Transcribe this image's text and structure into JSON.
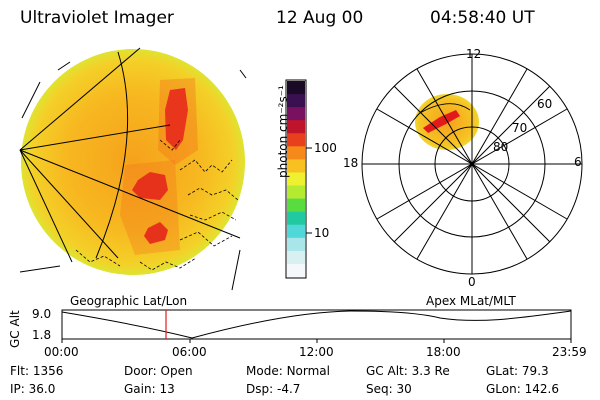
{
  "header": {
    "title": "Ultraviolet Imager",
    "date": "12 Aug 00",
    "time": "04:58:40 UT"
  },
  "colorbar": {
    "unit_label": "photon cm⁻²s⁻¹",
    "ticks": [
      "100",
      "10"
    ],
    "colors": [
      "#1a0a26",
      "#3a1050",
      "#7a1060",
      "#c0142c",
      "#e8401c",
      "#f58a1a",
      "#f8c020",
      "#eef030",
      "#b4ea30",
      "#58dc40",
      "#20c9a0",
      "#50d8d8",
      "#a8e6ea",
      "#d8f0f2",
      "#f4f8fa"
    ]
  },
  "polar_plot": {
    "labels": {
      "top": "12",
      "right": "6",
      "bottom": "0",
      "left": "18"
    },
    "lat_labels": [
      "60",
      "70",
      "80"
    ]
  },
  "frame_labels": {
    "geo": "Geographic Lat/Lon",
    "apex": "Apex MLat/MLT"
  },
  "altitude_strip": {
    "axis_label": "GC Alt",
    "y_ticks": [
      "9.0",
      "1.8"
    ],
    "x_ticks": [
      "00:00",
      "06:00",
      "12:00",
      "18:00",
      "23:59"
    ]
  },
  "info": {
    "row1": [
      {
        "label": "Flt:",
        "value": "1356"
      },
      {
        "label": "Door:",
        "value": "Open"
      },
      {
        "label": "Mode:",
        "value": "Normal"
      },
      {
        "label": "GC Alt:",
        "value": "3.3 Re"
      },
      {
        "label": "GLat:",
        "value": "79.3"
      }
    ],
    "row2": [
      {
        "label": "IP:",
        "value": "36.0"
      },
      {
        "label": "Gain:",
        "value": "13"
      },
      {
        "label": "Dsp:",
        "value": "-4.7"
      },
      {
        "label": "Seq:",
        "value": "30"
      },
      {
        "label": "GLon:",
        "value": "142.6"
      }
    ]
  }
}
